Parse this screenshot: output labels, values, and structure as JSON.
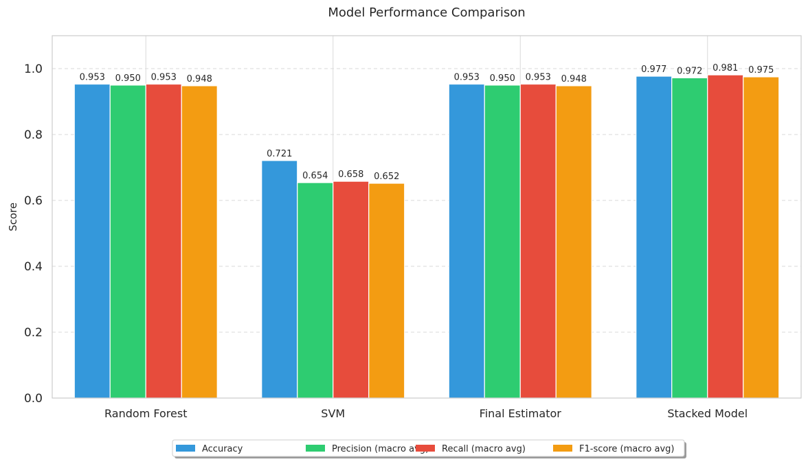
{
  "chart_data": {
    "type": "bar",
    "title": "Model Performance Comparison",
    "xlabel": "",
    "ylabel": "Score",
    "ylim": [
      0,
      1.1
    ],
    "yticks": [
      0.0,
      0.2,
      0.4,
      0.6,
      0.8,
      1.0
    ],
    "ytick_labels": [
      "0.0",
      "0.2",
      "0.4",
      "0.6",
      "0.8",
      "1.0"
    ],
    "grid": "y-dashed",
    "legend_position": "bottom-center",
    "categories": [
      "Random Forest",
      "SVM",
      "Final Estimator",
      "Stacked Model"
    ],
    "series": [
      {
        "name": "Accuracy",
        "color": "#3498db",
        "values": [
          0.953,
          0.721,
          0.953,
          0.977
        ],
        "labels": [
          "0.953",
          "0.721",
          "0.953",
          "0.977"
        ]
      },
      {
        "name": "Precision (macro avg)",
        "color": "#2ecc71",
        "values": [
          0.95,
          0.654,
          0.95,
          0.972
        ],
        "labels": [
          "0.950",
          "0.654",
          "0.950",
          "0.972"
        ]
      },
      {
        "name": "Recall (macro avg)",
        "color": "#e74c3c",
        "values": [
          0.953,
          0.658,
          0.953,
          0.981
        ],
        "labels": [
          "0.953",
          "0.658",
          "0.953",
          "0.981"
        ]
      },
      {
        "name": "F1-score (macro avg)",
        "color": "#f39c12",
        "values": [
          0.948,
          0.652,
          0.948,
          0.975
        ],
        "labels": [
          "0.948",
          "0.652",
          "0.948",
          "0.975"
        ]
      }
    ]
  }
}
